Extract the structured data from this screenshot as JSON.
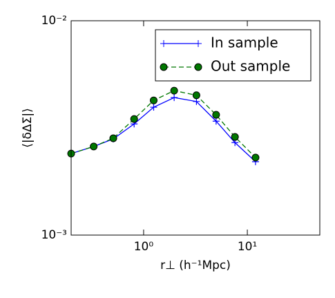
{
  "chart_data": {
    "type": "line",
    "xlabel": "r⊥ (h⁻¹Mpc)",
    "ylabel": "⟨|δΔΣ|⟩",
    "x": [
      0.2,
      0.33,
      0.51,
      0.81,
      1.25,
      1.97,
      3.23,
      5.0,
      7.6,
      12.0
    ],
    "series": [
      {
        "name": "In sample",
        "color": "#0000ff",
        "marker": "plus",
        "linestyle": "solid",
        "values": [
          0.0024,
          0.00259,
          0.00281,
          0.0033,
          0.00395,
          0.00438,
          0.0042,
          0.0034,
          0.0027,
          0.0022
        ]
      },
      {
        "name": "Out sample",
        "color": "#007700",
        "marker": "circle",
        "linestyle": "dashed",
        "values": [
          0.0024,
          0.00259,
          0.00283,
          0.00348,
          0.00425,
          0.00472,
          0.00449,
          0.00364,
          0.00287,
          0.0023
        ]
      }
    ],
    "xlim": [
      0.2,
      50
    ],
    "ylim": [
      0.001,
      0.01
    ],
    "xlog": true,
    "ylog": true,
    "xticks": [
      {
        "value": 1,
        "label": "10⁰"
      },
      {
        "value": 10,
        "label": "10¹"
      }
    ],
    "yticks": [
      {
        "value": 0.001,
        "label": "10⁻³"
      },
      {
        "value": 0.01,
        "label": "10⁻²"
      }
    ],
    "legend": "upper right"
  }
}
